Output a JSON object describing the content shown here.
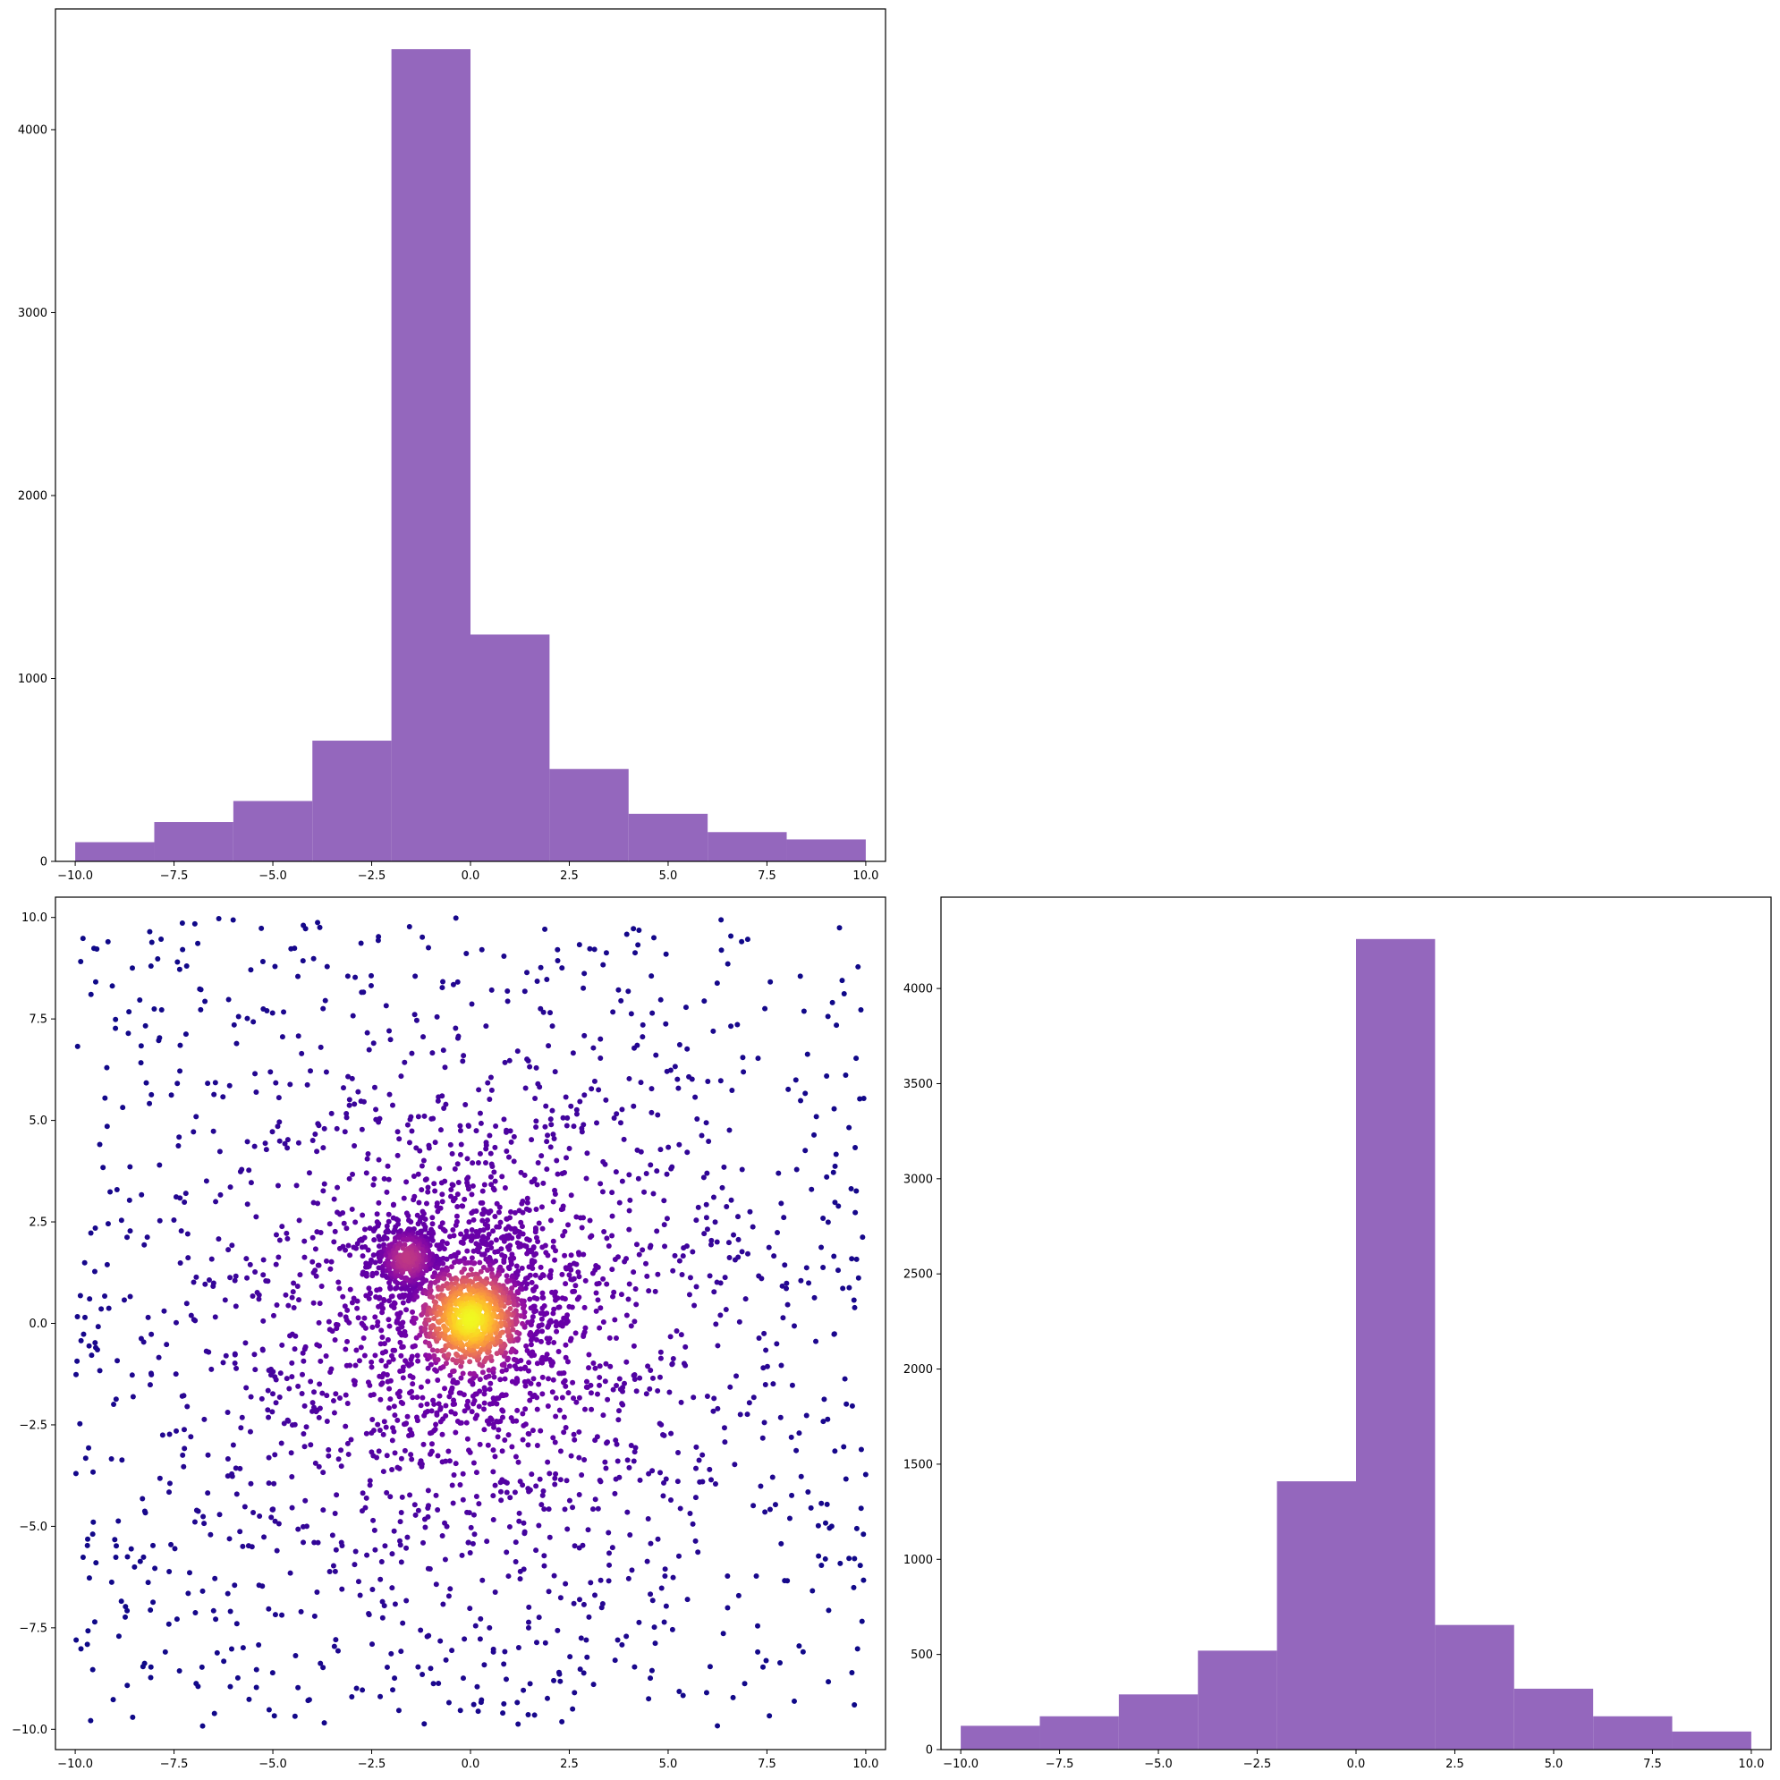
{
  "chart_data": [
    {
      "type": "bar",
      "subtype": "histogram",
      "panel": "top-left",
      "title": "",
      "xlabel": "",
      "ylabel": "",
      "bin_edges": [
        -10,
        -8,
        -6,
        -4,
        -2,
        0,
        2,
        4,
        6,
        8,
        10
      ],
      "values": [
        105,
        215,
        330,
        660,
        4440,
        1240,
        505,
        260,
        160,
        120
      ],
      "xlim": [
        -10.5,
        10.5
      ],
      "ylim": [
        0,
        4660
      ],
      "xticks": [
        -10,
        -7.5,
        -5,
        -2.5,
        0,
        2.5,
        5,
        7.5,
        10
      ],
      "xtick_labels": [
        "−10.0",
        "−7.5",
        "−5.0",
        "−2.5",
        "0.0",
        "2.5",
        "5.0",
        "7.5",
        "10.0"
      ],
      "yticks": [
        0,
        1000,
        2000,
        3000,
        4000
      ],
      "ytick_labels": [
        "0",
        "1000",
        "2000",
        "3000",
        "4000"
      ],
      "color": "#9467bd",
      "grid": false
    },
    {
      "type": "scatter",
      "panel": "bottom-left",
      "title": "",
      "xlabel": "",
      "ylabel": "",
      "colormap": "plasma",
      "color_by": "point density",
      "clusters": [
        {
          "center": [
            0.0,
            0.1
          ],
          "spread": 0.55,
          "count": 520,
          "density": 1.0
        },
        {
          "center": [
            -1.6,
            1.6
          ],
          "spread": 0.45,
          "count": 340,
          "density": 0.45
        },
        {
          "center": [
            0.3,
            0.6
          ],
          "spread": 1.3,
          "count": 600,
          "density": 0.7
        },
        {
          "center": [
            0.0,
            0.0
          ],
          "spread": 3.2,
          "count": 1300,
          "density": 0.25
        },
        {
          "center": [
            0.0,
            0.0
          ],
          "spread": 10.0,
          "count": 1000,
          "density": 0.0,
          "distribution": "uniform"
        }
      ],
      "xlim": [
        -10.5,
        10.5
      ],
      "ylim": [
        -10.5,
        10.5
      ],
      "xticks": [
        -10,
        -7.5,
        -5,
        -2.5,
        0,
        2.5,
        5,
        7.5,
        10
      ],
      "xtick_labels": [
        "−10.0",
        "−7.5",
        "−5.0",
        "−2.5",
        "0.0",
        "2.5",
        "5.0",
        "7.5",
        "10.0"
      ],
      "yticks": [
        -10,
        -7.5,
        -5,
        -2.5,
        0,
        2.5,
        5,
        7.5,
        10
      ],
      "ytick_labels": [
        "−10.0",
        "−7.5",
        "−5.0",
        "−2.5",
        "0.0",
        "2.5",
        "5.0",
        "7.5",
        "10.0"
      ],
      "grid": false
    },
    {
      "type": "bar",
      "subtype": "histogram",
      "panel": "bottom-right",
      "title": "",
      "xlabel": "",
      "ylabel": "",
      "bin_edges": [
        -10,
        -8,
        -6,
        -4,
        -2,
        0,
        2,
        4,
        6,
        8,
        10
      ],
      "values": [
        125,
        175,
        290,
        520,
        1410,
        4260,
        655,
        320,
        175,
        95
      ],
      "xlim": [
        -10.5,
        10.5
      ],
      "ylim": [
        0,
        4480
      ],
      "xticks": [
        -10,
        -7.5,
        -5,
        -2.5,
        0,
        2.5,
        5,
        7.5,
        10
      ],
      "xtick_labels": [
        "−10.0",
        "−7.5",
        "−5.0",
        "−2.5",
        "0.0",
        "2.5",
        "5.0",
        "7.5",
        "10.0"
      ],
      "yticks": [
        0,
        500,
        1000,
        1500,
        2000,
        2500,
        3000,
        3500,
        4000
      ],
      "ytick_labels": [
        "0",
        "500",
        "1000",
        "1500",
        "2000",
        "2500",
        "3000",
        "3500",
        "4000"
      ],
      "color": "#9467bd",
      "grid": false
    }
  ]
}
